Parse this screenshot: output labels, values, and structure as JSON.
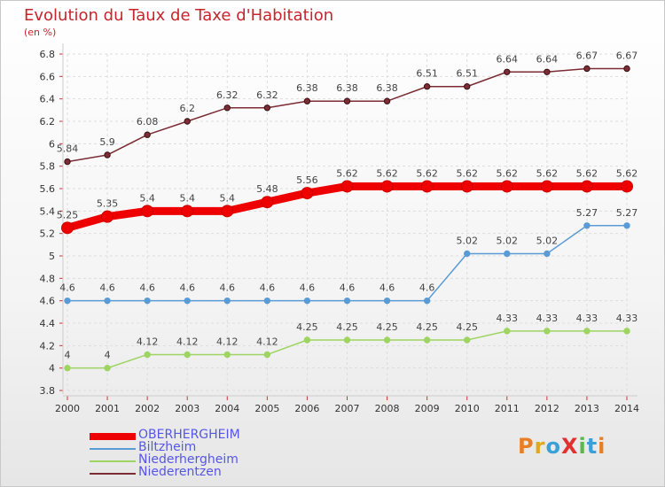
{
  "chart_data": {
    "type": "line",
    "title": "Evolution du Taux de Taxe d'Habitation",
    "unit_label": "(en %)",
    "x": [
      "2000",
      "2001",
      "2002",
      "2003",
      "2004",
      "2005",
      "2006",
      "2007",
      "2008",
      "2009",
      "2010",
      "2011",
      "2012",
      "2013",
      "2014"
    ],
    "ylim": [
      3.8,
      6.8
    ],
    "yticks": [
      "3.8",
      "4",
      "4.2",
      "4.4",
      "4.6",
      "4.8",
      "5",
      "5.2",
      "5.4",
      "5.6",
      "5.8",
      "6",
      "6.2",
      "6.4",
      "6.6",
      "6.8"
    ],
    "grid": true,
    "legend_position": "bottom-left",
    "series": [
      {
        "name": "OBERHERGHEIM",
        "color": "#ee0000",
        "values": [
          5.25,
          5.35,
          5.4,
          5.4,
          5.4,
          5.48,
          5.56,
          5.62,
          5.62,
          5.62,
          5.62,
          5.62,
          5.62,
          5.62,
          5.62
        ],
        "labels": [
          "5.25",
          "5.35",
          "5.4",
          "5.4",
          "5.4",
          "5.48",
          "5.56",
          "5.62",
          "5.62",
          "5.62",
          "5.62",
          "5.62",
          "5.62",
          "5.62",
          "5.62"
        ]
      },
      {
        "name": "Biltzheim",
        "color": "#5b9bd5",
        "values": [
          4.6,
          4.6,
          4.6,
          4.6,
          4.6,
          4.6,
          4.6,
          4.6,
          4.6,
          4.6,
          5.02,
          5.02,
          5.02,
          5.27,
          5.27
        ],
        "labels": [
          "4.6",
          "4.6",
          "4.6",
          "4.6",
          "4.6",
          "4.6",
          "4.6",
          "4.6",
          "4.6",
          "4.6",
          "5.02",
          "5.02",
          "5.02",
          "5.27",
          "5.27"
        ]
      },
      {
        "name": "Niederhergheim",
        "color": "#9ed461",
        "values": [
          4,
          4,
          4.12,
          4.12,
          4.12,
          4.12,
          4.25,
          4.25,
          4.25,
          4.25,
          4.25,
          4.33,
          4.33,
          4.33,
          4.33
        ],
        "labels": [
          "4",
          "4",
          "4.12",
          "4.12",
          "4.12",
          "4.12",
          "4.25",
          "4.25",
          "4.25",
          "4.25",
          "4.25",
          "4.33",
          "4.33",
          "4.33",
          "4.33"
        ]
      },
      {
        "name": "Niederentzen",
        "color": "#7b2c34",
        "values": [
          5.84,
          5.9,
          6.08,
          6.2,
          6.32,
          6.32,
          6.38,
          6.38,
          6.38,
          6.51,
          6.51,
          6.64,
          6.64,
          6.67,
          6.67
        ],
        "labels": [
          "5.84",
          "5.9",
          "6.08",
          "6.2",
          "6.32",
          "6.32",
          "6.38",
          "6.38",
          "6.38",
          "6.51",
          "6.51",
          "6.64",
          "6.64",
          "6.67",
          "6.67"
        ]
      }
    ]
  },
  "logo": {
    "text": "ProXiti"
  }
}
